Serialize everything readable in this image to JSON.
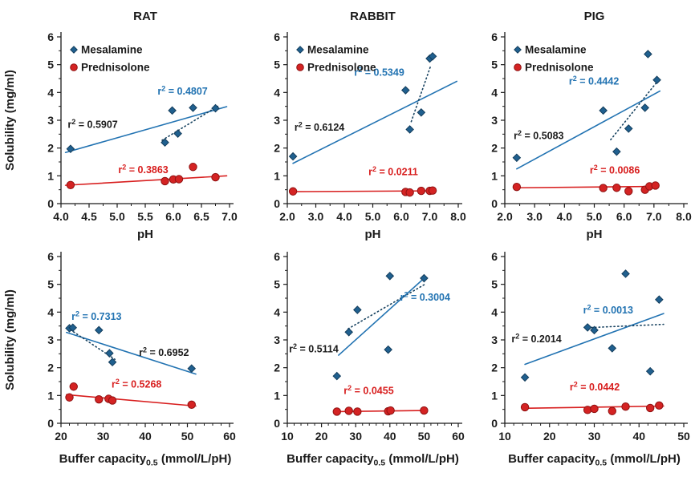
{
  "colors": {
    "axis": "#1b1b1b",
    "text": "#1b1b1b",
    "blueMarker": "#20608f",
    "blueEdge": "#143d5c",
    "blueLine": "#2273b2",
    "blueDotted": "#16415f",
    "redMarker": "#d42323",
    "redEdge": "#8f1111",
    "redLine": "#d81f1f"
  },
  "legend": {
    "items": [
      {
        "label": "Mesalamine",
        "marker": "diamond"
      },
      {
        "label": "Prednisolone",
        "marker": "circle"
      }
    ]
  },
  "ylabel": "Solubility (mg/ml)",
  "ylim": [
    0,
    6
  ],
  "yticks": [
    "0",
    "1",
    "2",
    "3",
    "4",
    "5",
    "6"
  ],
  "xlabels": {
    "ph": {
      "pre": "pH"
    },
    "buffer": {
      "pre": "Buffer capacity",
      "sub": "0.5",
      "post": " (mmol/L/pH)"
    }
  },
  "chart_data": {
    "type": "scatter",
    "panels": [
      {
        "id": "rat-ph",
        "title": "RAT",
        "row": 0,
        "col": 0,
        "xlabel": "ph",
        "xlim": [
          4.0,
          7.0
        ],
        "xticks": [
          "4.0",
          "4.5",
          "5.0",
          "5.5",
          "6.0",
          "6.5",
          "7.0"
        ],
        "xminor_divs": 2,
        "show_legend": true,
        "show_ylabel": true,
        "series": [
          {
            "name": "Mesalamine",
            "marker": "diamond",
            "points": [
              [
                4.17,
                1.97
              ],
              [
                5.85,
                2.2
              ],
              [
                5.98,
                3.35
              ],
              [
                6.08,
                2.52
              ],
              [
                6.35,
                3.45
              ],
              [
                6.75,
                3.43
              ]
            ]
          },
          {
            "name": "Prednisolone",
            "marker": "circle",
            "points": [
              [
                4.17,
                0.67
              ],
              [
                5.85,
                0.81
              ],
              [
                6.0,
                0.87
              ],
              [
                6.1,
                0.88
              ],
              [
                6.35,
                1.32
              ],
              [
                6.75,
                0.95
              ]
            ]
          }
        ],
        "trendlines": [
          {
            "style": "solid",
            "color": "blue",
            "from": [
              4.08,
              1.84
            ],
            "to": [
              6.95,
              3.49
            ]
          },
          {
            "style": "dotted",
            "color": "darkblue",
            "from": [
              5.8,
              2.28
            ],
            "to": [
              6.82,
              3.54
            ]
          },
          {
            "style": "solid",
            "color": "red",
            "from": [
              4.08,
              0.66
            ],
            "to": [
              6.95,
              1.0
            ]
          }
        ],
        "annotations": [
          {
            "label": "r2",
            "value": "0.5907",
            "color": "black",
            "at": [
              4.12,
              2.72
            ]
          },
          {
            "label": "r2",
            "value": "0.4807",
            "color": "blue",
            "at": [
              5.72,
              3.92
            ]
          },
          {
            "label": "r2",
            "value": "0.3863",
            "color": "red",
            "at": [
              5.02,
              1.1
            ]
          }
        ]
      },
      {
        "id": "rabbit-ph",
        "title": "RABBIT",
        "row": 0,
        "col": 1,
        "xlabel": "ph",
        "xlim": [
          2.0,
          8.0
        ],
        "xticks": [
          "2.0",
          "3.0",
          "4.0",
          "5.0",
          "6.0",
          "7.0",
          "8.0"
        ],
        "xminor_divs": 2,
        "show_legend": true,
        "show_ylabel": false,
        "series": [
          {
            "name": "Mesalamine",
            "marker": "diamond",
            "points": [
              [
                2.2,
                1.7
              ],
              [
                6.15,
                4.08
              ],
              [
                6.3,
                2.67
              ],
              [
                6.7,
                3.28
              ],
              [
                7.0,
                5.22
              ],
              [
                7.1,
                5.3
              ]
            ]
          },
          {
            "name": "Prednisolone",
            "marker": "circle",
            "points": [
              [
                2.2,
                0.44
              ],
              [
                6.15,
                0.42
              ],
              [
                6.3,
                0.4
              ],
              [
                6.7,
                0.46
              ],
              [
                7.0,
                0.46
              ],
              [
                7.1,
                0.47
              ]
            ]
          }
        ],
        "trendlines": [
          {
            "style": "solid",
            "color": "blue",
            "from": [
              2.2,
              1.45
            ],
            "to": [
              7.95,
              4.4
            ]
          },
          {
            "style": "dotted",
            "color": "darkblue",
            "from": [
              6.35,
              2.95
            ],
            "to": [
              7.02,
              4.92
            ]
          },
          {
            "style": "solid",
            "color": "red",
            "from": [
              2.2,
              0.43
            ],
            "to": [
              7.15,
              0.46
            ]
          }
        ],
        "annotations": [
          {
            "label": "r2",
            "value": "0.6124",
            "color": "black",
            "at": [
              2.25,
              2.62
            ]
          },
          {
            "label": "r2",
            "value": "0.5349",
            "color": "blue",
            "at": [
              4.35,
              4.6
            ]
          },
          {
            "label": "r2",
            "value": "0.0211",
            "color": "red",
            "at": [
              4.85,
              1.02
            ]
          }
        ]
      },
      {
        "id": "pig-ph",
        "title": "PIG",
        "row": 0,
        "col": 2,
        "xlabel": "ph",
        "xlim": [
          2.0,
          8.0
        ],
        "xticks": [
          "2.0",
          "3.0",
          "4.0",
          "5.0",
          "6.0",
          "7.0",
          "8.0"
        ],
        "xminor_divs": 2,
        "show_legend": true,
        "show_ylabel": false,
        "series": [
          {
            "name": "Mesalamine",
            "marker": "diamond",
            "points": [
              [
                2.4,
                1.65
              ],
              [
                5.3,
                3.35
              ],
              [
                5.75,
                1.87
              ],
              [
                6.15,
                2.7
              ],
              [
                6.7,
                3.45
              ],
              [
                6.8,
                5.38
              ],
              [
                7.1,
                4.45
              ]
            ]
          },
          {
            "name": "Prednisolone",
            "marker": "circle",
            "points": [
              [
                2.4,
                0.6
              ],
              [
                5.3,
                0.56
              ],
              [
                5.75,
                0.57
              ],
              [
                6.15,
                0.45
              ],
              [
                6.7,
                0.5
              ],
              [
                6.85,
                0.62
              ],
              [
                7.05,
                0.65
              ]
            ]
          }
        ],
        "trendlines": [
          {
            "style": "solid",
            "color": "blue",
            "from": [
              2.4,
              1.25
            ],
            "to": [
              7.2,
              4.05
            ]
          },
          {
            "style": "dotted",
            "color": "darkblue",
            "from": [
              5.55,
              2.3
            ],
            "to": [
              7.12,
              4.4
            ]
          },
          {
            "style": "solid",
            "color": "red",
            "from": [
              2.4,
              0.57
            ],
            "to": [
              7.15,
              0.62
            ]
          }
        ],
        "annotations": [
          {
            "label": "r2",
            "value": "0.5083",
            "color": "black",
            "at": [
              2.3,
              2.32
            ]
          },
          {
            "label": "r2",
            "value": "0.4442",
            "color": "blue",
            "at": [
              4.15,
              4.28
            ]
          },
          {
            "label": "r2",
            "value": "0.0086",
            "color": "red",
            "at": [
              4.85,
              1.08
            ]
          }
        ]
      },
      {
        "id": "rat-buffer",
        "title": null,
        "row": 1,
        "col": 0,
        "xlabel": "buffer",
        "xlim": [
          20,
          60
        ],
        "xticks": [
          "20",
          "30",
          "40",
          "50",
          "60"
        ],
        "xminor_divs": 5,
        "show_legend": false,
        "show_ylabel": true,
        "series": [
          {
            "name": "Mesalamine",
            "marker": "diamond",
            "points": [
              [
                22.0,
                3.42
              ],
              [
                22.8,
                3.44
              ],
              [
                29.0,
                3.35
              ],
              [
                31.5,
                2.52
              ],
              [
                32.2,
                2.2
              ],
              [
                51.0,
                1.97
              ]
            ]
          },
          {
            "name": "Prednisolone",
            "marker": "circle",
            "points": [
              [
                22.0,
                0.93
              ],
              [
                23.0,
                1.32
              ],
              [
                29.0,
                0.86
              ],
              [
                31.3,
                0.88
              ],
              [
                32.2,
                0.82
              ],
              [
                51.0,
                0.67
              ]
            ]
          }
        ],
        "trendlines": [
          {
            "style": "solid",
            "color": "blue",
            "from": [
              21.3,
              3.27
            ],
            "to": [
              52.0,
              1.77
            ]
          },
          {
            "style": "dotted",
            "color": "darkblue",
            "from": [
              21.5,
              3.44
            ],
            "to": [
              32.8,
              2.3
            ]
          },
          {
            "style": "solid",
            "color": "red",
            "from": [
              21.3,
              1.03
            ],
            "to": [
              52.0,
              0.62
            ]
          }
        ],
        "annotations": [
          {
            "label": "r2",
            "value": "0.7313",
            "color": "blue",
            "at": [
              22.5,
              3.72
            ]
          },
          {
            "label": "r2",
            "value": "0.6952",
            "color": "black",
            "at": [
              38.5,
              2.42
            ]
          },
          {
            "label": "r2",
            "value": "0.5268",
            "color": "red",
            "at": [
              32.0,
              1.28
            ]
          }
        ]
      },
      {
        "id": "rabbit-buffer",
        "title": null,
        "row": 1,
        "col": 1,
        "xlabel": "buffer",
        "xlim": [
          10,
          60
        ],
        "xticks": [
          "10",
          "20",
          "30",
          "40",
          "50",
          "60"
        ],
        "xminor_divs": 5,
        "show_legend": false,
        "show_ylabel": false,
        "series": [
          {
            "name": "Mesalamine",
            "marker": "diamond",
            "points": [
              [
                24.5,
                1.7
              ],
              [
                28.0,
                3.28
              ],
              [
                30.5,
                4.08
              ],
              [
                39.5,
                2.65
              ],
              [
                40.0,
                5.3
              ],
              [
                50.0,
                5.22
              ]
            ]
          },
          {
            "name": "Prednisolone",
            "marker": "circle",
            "points": [
              [
                24.5,
                0.42
              ],
              [
                28.0,
                0.45
              ],
              [
                30.5,
                0.42
              ],
              [
                39.5,
                0.43
              ],
              [
                40.2,
                0.46
              ],
              [
                50.0,
                0.46
              ]
            ]
          }
        ],
        "trendlines": [
          {
            "style": "solid",
            "color": "blue",
            "from": [
              25.0,
              2.45
            ],
            "to": [
              50.3,
              5.25
            ]
          },
          {
            "style": "dotted",
            "color": "darkblue",
            "from": [
              27.8,
              3.4
            ],
            "to": [
              50.5,
              5.02
            ]
          },
          {
            "style": "solid",
            "color": "red",
            "from": [
              24.5,
              0.42
            ],
            "to": [
              50.3,
              0.46
            ]
          }
        ],
        "annotations": [
          {
            "label": "r2",
            "value": "0.5114",
            "color": "black",
            "at": [
              10.5,
              2.55
            ]
          },
          {
            "label": "r2",
            "value": "0.3004",
            "color": "blue",
            "at": [
              43.0,
              4.42
            ]
          },
          {
            "label": "r2",
            "value": "0.0455",
            "color": "red",
            "at": [
              26.5,
              1.05
            ]
          }
        ]
      },
      {
        "id": "pig-buffer",
        "title": null,
        "row": 1,
        "col": 2,
        "xlabel": "buffer",
        "xlim": [
          10,
          50
        ],
        "xticks": [
          "10",
          "20",
          "30",
          "40",
          "50"
        ],
        "xminor_divs": 5,
        "show_legend": false,
        "show_ylabel": false,
        "series": [
          {
            "name": "Mesalamine",
            "marker": "diamond",
            "points": [
              [
                14.5,
                1.65
              ],
              [
                28.5,
                3.45
              ],
              [
                30.0,
                3.35
              ],
              [
                34.0,
                2.7
              ],
              [
                37.0,
                5.38
              ],
              [
                42.5,
                1.87
              ],
              [
                44.5,
                4.45
              ]
            ]
          },
          {
            "name": "Prednisolone",
            "marker": "circle",
            "points": [
              [
                14.5,
                0.58
              ],
              [
                28.5,
                0.48
              ],
              [
                30.0,
                0.52
              ],
              [
                34.0,
                0.44
              ],
              [
                37.0,
                0.6
              ],
              [
                42.5,
                0.55
              ],
              [
                44.5,
                0.64
              ]
            ]
          }
        ],
        "trendlines": [
          {
            "style": "solid",
            "color": "blue",
            "from": [
              14.5,
              2.12
            ],
            "to": [
              45.5,
              3.95
            ]
          },
          {
            "style": "dotted",
            "color": "darkblue",
            "from": [
              28.5,
              3.44
            ],
            "to": [
              45.5,
              3.56
            ]
          },
          {
            "style": "solid",
            "color": "red",
            "from": [
              14.0,
              0.54
            ],
            "to": [
              45.5,
              0.62
            ]
          }
        ],
        "annotations": [
          {
            "label": "r2",
            "value": "0.2014",
            "color": "black",
            "at": [
              11.5,
              2.92
            ]
          },
          {
            "label": "r2",
            "value": "0.0013",
            "color": "blue",
            "at": [
              27.5,
              3.95
            ]
          },
          {
            "label": "r2",
            "value": "0.0442",
            "color": "red",
            "at": [
              24.5,
              1.18
            ]
          }
        ]
      }
    ]
  }
}
